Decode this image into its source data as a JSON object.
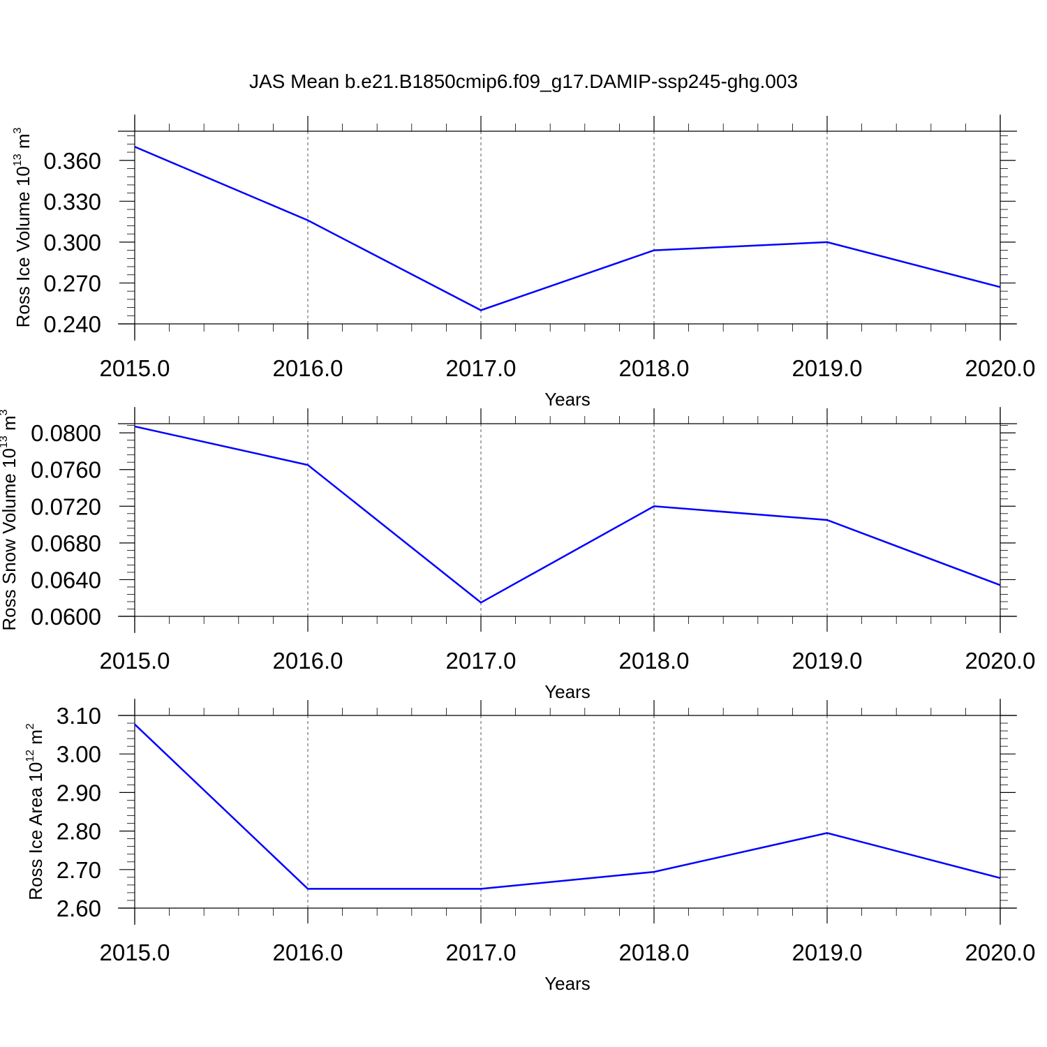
{
  "title": "JAS Mean b.e21.B1850cmip6.f09_g17.DAMIP-ssp245-ghg.003",
  "colors": {
    "series": "#0000ff",
    "axis": "#000000",
    "grid": "#555555"
  },
  "chart_data": [
    {
      "type": "line",
      "x": [
        2015,
        2016,
        2017,
        2018,
        2019,
        2020
      ],
      "xticks": [
        "2015.0",
        "2016.0",
        "2017.0",
        "2018.0",
        "2019.0",
        "2020.0"
      ],
      "xlabel": "Years",
      "ylabel": "Ross Ice Volume 10",
      "ylabel_exp": "13",
      "ylabel_unit": "m",
      "ylabel_unit_exp": "3",
      "yticks": [
        "0.240",
        "0.270",
        "0.300",
        "0.330",
        "0.360"
      ],
      "ytick_values": [
        0.24,
        0.27,
        0.3,
        0.33,
        0.36
      ],
      "ylim": [
        0.24,
        0.3814
      ],
      "series": [
        {
          "values": [
            0.37,
            0.316,
            0.25,
            0.294,
            0.3,
            0.267
          ]
        }
      ],
      "grid": "vertical dashed at major x ticks"
    },
    {
      "type": "line",
      "x": [
        2015,
        2016,
        2017,
        2018,
        2019,
        2020
      ],
      "xticks": [
        "2015.0",
        "2016.0",
        "2017.0",
        "2018.0",
        "2019.0",
        "2020.0"
      ],
      "xlabel": "Years",
      "ylabel": "Ross Snow Volume 10",
      "ylabel_exp": "13",
      "ylabel_unit": "m",
      "ylabel_unit_exp": "3",
      "yticks": [
        "0.0600",
        "0.0640",
        "0.0680",
        "0.0720",
        "0.0760",
        "0.0800"
      ],
      "ytick_values": [
        0.06,
        0.064,
        0.068,
        0.072,
        0.076,
        0.08
      ],
      "ylim": [
        0.06,
        0.081
      ],
      "series": [
        {
          "values": [
            0.0807,
            0.0765,
            0.0615,
            0.072,
            0.0705,
            0.0634
          ]
        }
      ],
      "grid": "vertical dashed at major x ticks"
    },
    {
      "type": "line",
      "x": [
        2015,
        2016,
        2017,
        2018,
        2019,
        2020
      ],
      "xticks": [
        "2015.0",
        "2016.0",
        "2017.0",
        "2018.0",
        "2019.0",
        "2020.0"
      ],
      "xlabel": "Years",
      "ylabel": "Ross Ice Area 10",
      "ylabel_exp": "12",
      "ylabel_unit": "m",
      "ylabel_unit_exp": "2",
      "yticks": [
        "2.60",
        "2.70",
        "2.80",
        "2.90",
        "3.00",
        "3.10"
      ],
      "ytick_values": [
        2.6,
        2.7,
        2.8,
        2.9,
        3.0,
        3.1
      ],
      "ylim": [
        2.6,
        3.1
      ],
      "series": [
        {
          "values": [
            3.077,
            2.65,
            2.65,
            2.694,
            2.795,
            2.678
          ]
        }
      ],
      "grid": "vertical dashed at major x ticks"
    }
  ]
}
